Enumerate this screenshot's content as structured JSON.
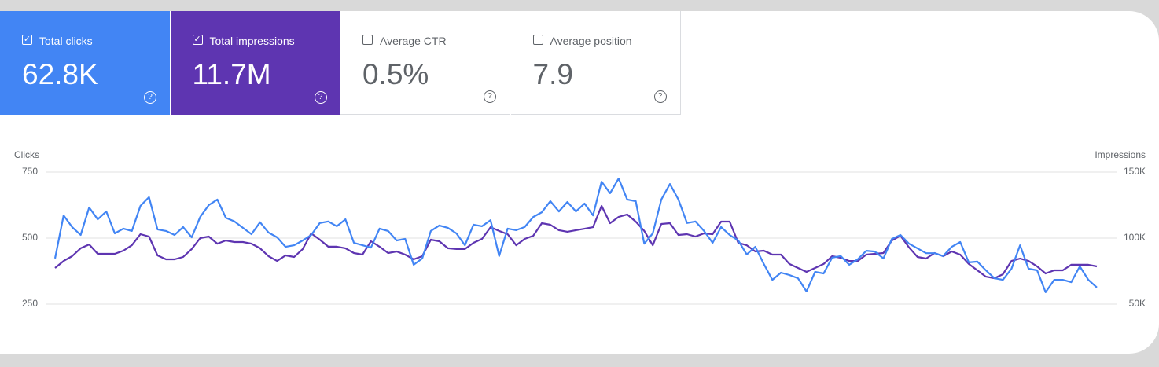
{
  "cards": [
    {
      "label": "Total clicks",
      "value": "62.8K",
      "checked": true,
      "color": "#4285f4"
    },
    {
      "label": "Total impressions",
      "value": "11.7M",
      "checked": true,
      "color": "#5e35b1"
    },
    {
      "label": "Average CTR",
      "value": "0.5%",
      "checked": false,
      "color": "#ffffff"
    },
    {
      "label": "Average position",
      "value": "7.9",
      "checked": false,
      "color": "#ffffff"
    }
  ],
  "chart_data": {
    "type": "line",
    "ylabel": "Clicks",
    "y2label": "Impressions",
    "ylim": [
      250,
      750
    ],
    "yticks": [
      750,
      500,
      250
    ],
    "y2lim": [
      50000,
      150000
    ],
    "y2ticks": [
      {
        "value": 150000,
        "label": "150K"
      },
      {
        "value": 100000,
        "label": "100K"
      },
      {
        "value": 50000,
        "label": "50K"
      }
    ],
    "grid": true,
    "series": [
      {
        "color": "#5e35b1",
        "axis": "y2",
        "values": [
          77400,
          82700,
          86300,
          92300,
          95200,
          88100,
          88100,
          88100,
          90500,
          94600,
          103000,
          101200,
          86900,
          83900,
          83900,
          85700,
          91700,
          100000,
          101200,
          95800,
          98200,
          97000,
          97000,
          95800,
          92300,
          86300,
          82700,
          86900,
          85700,
          91700,
          103600,
          98800,
          93500,
          93500,
          92300,
          88700,
          87500,
          97600,
          93500,
          88700,
          89900,
          87500,
          83900,
          86300,
          98800,
          97600,
          92300,
          91700,
          91700,
          96400,
          99400,
          108300,
          105400,
          103000,
          94600,
          99400,
          101800,
          111300,
          110100,
          106000,
          104800,
          106000,
          107100,
          108300,
          124400,
          111300,
          116100,
          117900,
          112500,
          105400,
          94600,
          110700,
          111300,
          102400,
          103000,
          101200,
          103600,
          103000,
          112500,
          112500,
          96400,
          94600,
          89900,
          90500,
          87500,
          87500,
          80400,
          77400,
          74400,
          77400,
          80400,
          86300,
          85100,
          82700,
          82700,
          87500,
          88100,
          88700,
          98200,
          101800,
          92900,
          85700,
          84500,
          88700,
          86300,
          89900,
          87500,
          80400,
          75600,
          70800,
          69600,
          72600,
          82700,
          84500,
          82700,
          78600,
          73200,
          75600,
          75600,
          79800,
          79800,
          79800,
          78600
        ]
      },
      {
        "color": "#4285f4",
        "axis": "y",
        "values": [
          423,
          586,
          542,
          512,
          616,
          571,
          601,
          518,
          536,
          527,
          622,
          655,
          533,
          527,
          512,
          542,
          503,
          580,
          625,
          646,
          577,
          563,
          539,
          515,
          560,
          521,
          503,
          467,
          473,
          491,
          512,
          557,
          563,
          545,
          571,
          482,
          473,
          464,
          536,
          527,
          491,
          497,
          399,
          423,
          527,
          548,
          539,
          518,
          473,
          551,
          545,
          568,
          432,
          536,
          530,
          542,
          580,
          598,
          640,
          601,
          637,
          601,
          631,
          586,
          714,
          670,
          726,
          646,
          640,
          479,
          518,
          646,
          705,
          646,
          557,
          563,
          527,
          482,
          542,
          512,
          491,
          438,
          467,
          402,
          342,
          369,
          360,
          348,
          298,
          372,
          366,
          426,
          432,
          399,
          420,
          452,
          449,
          423,
          497,
          512,
          479,
          461,
          443,
          443,
          432,
          467,
          485,
          408,
          411,
          378,
          348,
          342,
          384,
          473,
          384,
          378,
          295,
          342,
          342,
          333,
          393,
          342,
          313
        ]
      }
    ]
  }
}
